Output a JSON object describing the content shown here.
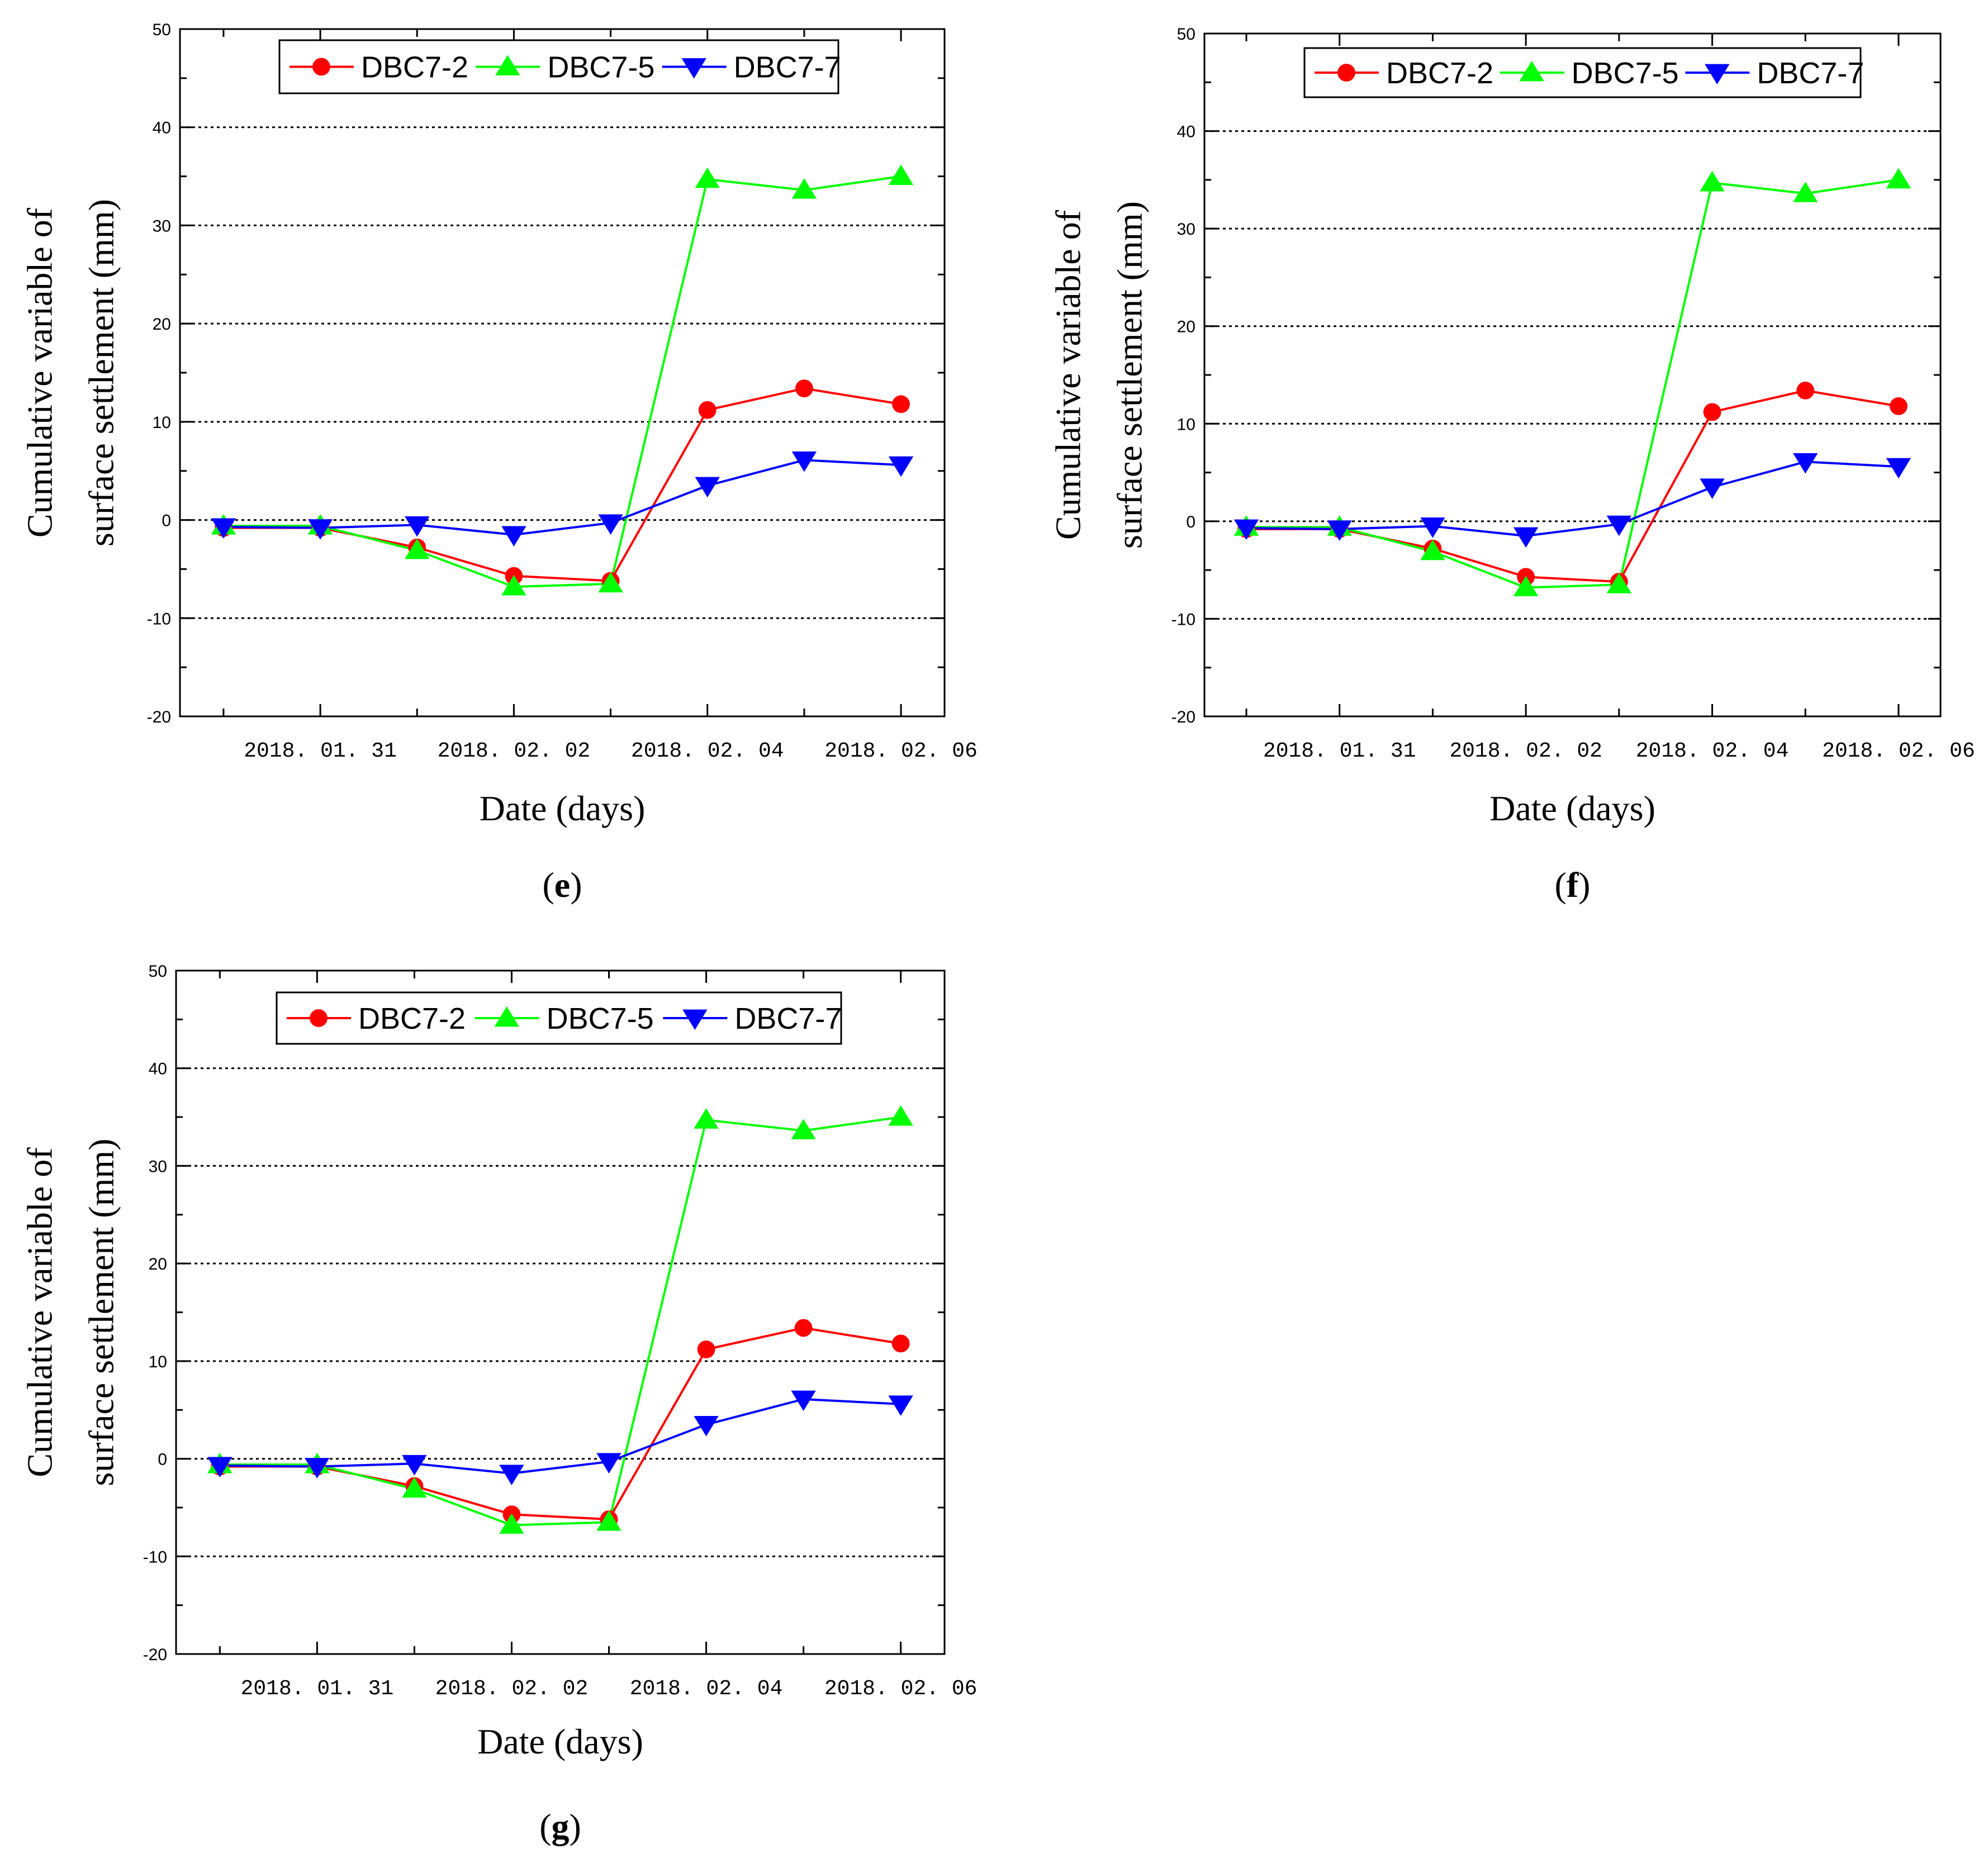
{
  "chart_data": [
    {
      "panel_label": "e",
      "type": "line",
      "xlabel": "Date (days)",
      "ylabel_line1": "Cumulative variable of",
      "ylabel_line2": "surface settlement (mm)",
      "ylim": [
        -20,
        50
      ],
      "yticks": [
        -20,
        -10,
        0,
        10,
        20,
        30,
        40,
        50
      ],
      "grid_y": [
        -10,
        0,
        10,
        20,
        30,
        40
      ],
      "x": [
        0,
        1,
        2,
        3,
        4,
        5,
        6,
        7
      ],
      "xlim": [
        -0.45,
        7.45
      ],
      "xtick_positions": [
        1,
        3,
        5,
        7
      ],
      "xtick_labels": [
        "2018. 01. 31",
        "2018. 02. 02",
        "2018. 02. 04",
        "2018. 02. 06"
      ],
      "legend_position": "top-center",
      "series": [
        {
          "name": "DBC7-2",
          "color": "#ff0000",
          "marker": "circle",
          "values": [
            -0.8,
            -0.8,
            -2.8,
            -5.7,
            -6.2,
            11.2,
            13.4,
            11.8
          ]
        },
        {
          "name": "DBC7-5",
          "color": "#00ff00",
          "marker": "triangle-up",
          "values": [
            -0.6,
            -0.6,
            -3.1,
            -6.8,
            -6.5,
            34.7,
            33.6,
            35.0
          ]
        },
        {
          "name": "DBC7-7",
          "color": "#0000ff",
          "marker": "triangle-down",
          "values": [
            -0.7,
            -0.8,
            -0.5,
            -1.5,
            -0.3,
            3.5,
            6.1,
            5.6
          ]
        }
      ]
    },
    {
      "panel_label": "f",
      "type": "line",
      "xlabel": "Date (days)",
      "ylabel_line1": "Cumulative variable of",
      "ylabel_line2": "surface settlement (mm)",
      "ylim": [
        -20,
        50
      ],
      "yticks": [
        -20,
        -10,
        0,
        10,
        20,
        30,
        40,
        50
      ],
      "grid_y": [
        -10,
        0,
        10,
        20,
        30,
        40
      ],
      "x": [
        0,
        1,
        2,
        3,
        4,
        5,
        6,
        7
      ],
      "xlim": [
        -0.45,
        7.45
      ],
      "xtick_positions": [
        1,
        3,
        5,
        7
      ],
      "xtick_labels": [
        "2018. 01. 31",
        "2018. 02. 02",
        "2018. 02. 04",
        "2018. 02. 06"
      ],
      "legend_position": "top-center",
      "series": [
        {
          "name": "DBC7-2",
          "color": "#ff0000",
          "marker": "circle",
          "values": [
            -0.8,
            -0.8,
            -2.8,
            -5.7,
            -6.2,
            11.2,
            13.4,
            11.8
          ]
        },
        {
          "name": "DBC7-5",
          "color": "#00ff00",
          "marker": "triangle-up",
          "values": [
            -0.6,
            -0.6,
            -3.1,
            -6.8,
            -6.5,
            34.7,
            33.6,
            35.0
          ]
        },
        {
          "name": "DBC7-7",
          "color": "#0000ff",
          "marker": "triangle-down",
          "values": [
            -0.7,
            -0.8,
            -0.5,
            -1.5,
            -0.3,
            3.5,
            6.1,
            5.6
          ]
        }
      ]
    },
    {
      "panel_label": "g",
      "type": "line",
      "xlabel": "Date (days)",
      "ylabel_line1": "Cumulative variable of",
      "ylabel_line2": "surface settlement (mm)",
      "ylim": [
        -20,
        50
      ],
      "yticks": [
        -20,
        -10,
        0,
        10,
        20,
        30,
        40,
        50
      ],
      "grid_y": [
        -10,
        0,
        10,
        20,
        30,
        40
      ],
      "x": [
        0,
        1,
        2,
        3,
        4,
        5,
        6,
        7
      ],
      "xlim": [
        -0.45,
        7.45
      ],
      "xtick_positions": [
        1,
        3,
        5,
        7
      ],
      "xtick_labels": [
        "2018. 01. 31",
        "2018. 02. 02",
        "2018. 02. 04",
        "2018. 02. 06"
      ],
      "legend_position": "top-center",
      "series": [
        {
          "name": "DBC7-2",
          "color": "#ff0000",
          "marker": "circle",
          "values": [
            -0.8,
            -0.8,
            -2.8,
            -5.7,
            -6.2,
            11.2,
            13.4,
            11.8
          ]
        },
        {
          "name": "DBC7-5",
          "color": "#00ff00",
          "marker": "triangle-up",
          "values": [
            -0.6,
            -0.6,
            -3.1,
            -6.8,
            -6.5,
            34.7,
            33.6,
            35.0
          ]
        },
        {
          "name": "DBC7-7",
          "color": "#0000ff",
          "marker": "triangle-down",
          "values": [
            -0.7,
            -0.8,
            -0.5,
            -1.5,
            -0.3,
            3.5,
            6.1,
            5.6
          ]
        }
      ]
    }
  ]
}
